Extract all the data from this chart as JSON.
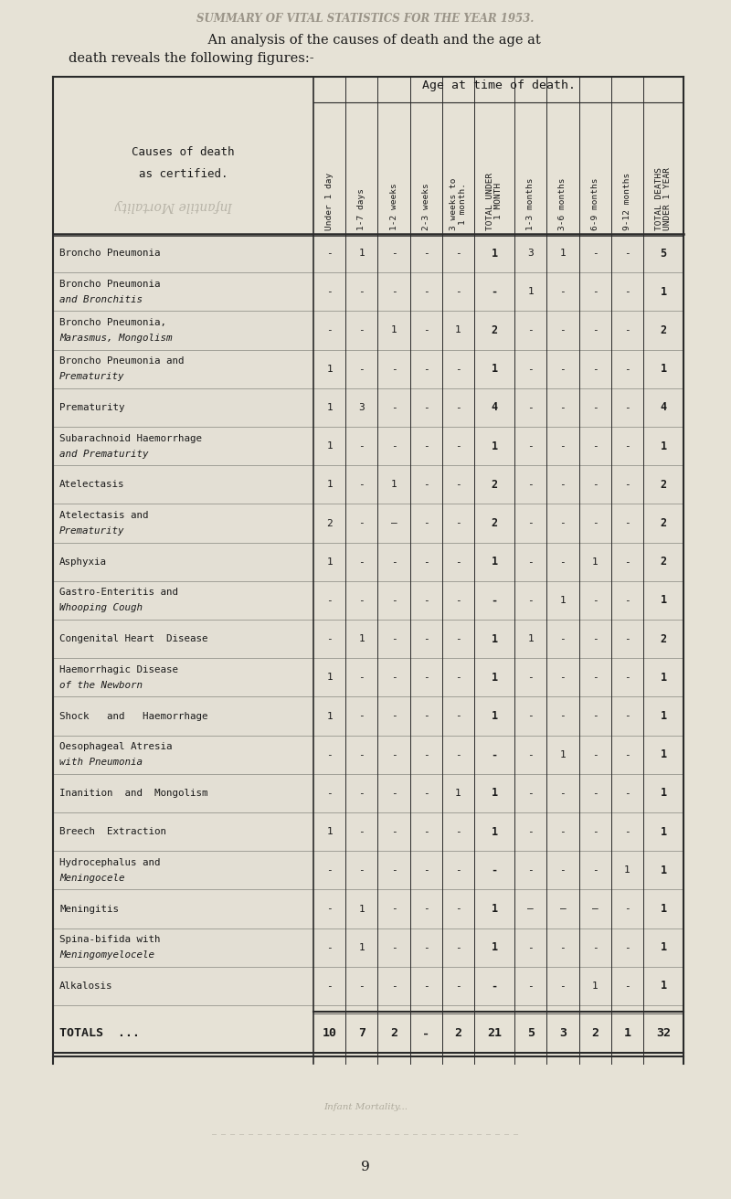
{
  "page_title": "SUMMARY OF VITAL STATISTICS FOR THE YEAR 1953.",
  "intro_line1": "    An analysis of the causes of death and the age at",
  "intro_line2": "death reveals the following figures:-",
  "col_header_top": "Age at time of death.",
  "col_headers": [
    "Under 1 day",
    "1-7 days",
    "1-2 weeks",
    "2-3 weeks",
    "3 weeks to\n1 month.",
    "TOTAL UNDER\n1 MONTH",
    "1-3 months",
    "3-6 months",
    "6-9 months",
    "9-12 months",
    "TOTAL DEATHS\nUNDER 1 YEAR"
  ],
  "row_label_header_line1": "Causes of death",
  "row_label_header_line2": "as certified.",
  "rows": [
    {
      "label": [
        "Broncho Pneumonia"
      ],
      "values": [
        "-",
        "1",
        "-",
        "-",
        "-",
        "1",
        "3",
        "1",
        "-",
        "-",
        "5"
      ]
    },
    {
      "label": [
        "Broncho Pneumonia",
        "and Bronchitis"
      ],
      "values": [
        "-",
        "-",
        "-",
        "-",
        "-",
        "-",
        "1",
        "-",
        "-",
        "-",
        "1"
      ]
    },
    {
      "label": [
        "Broncho Pneumonia,",
        "Marasmus, Mongolism"
      ],
      "values": [
        "-",
        "-",
        "1",
        "-",
        "1",
        "2",
        "-",
        "-",
        "-",
        "-",
        "2"
      ]
    },
    {
      "label": [
        "Broncho Pneumonia and",
        "Prematurity"
      ],
      "values": [
        "1",
        "-",
        "-",
        "-",
        "-",
        "1",
        "-",
        "-",
        "-",
        "-",
        "1"
      ]
    },
    {
      "label": [
        "Prematurity"
      ],
      "values": [
        "1",
        "3",
        "-",
        "-",
        "-",
        "4",
        "-",
        "-",
        "-",
        "-",
        "4"
      ]
    },
    {
      "label": [
        "Subarachnoid Haemorrhage",
        "and Prematurity"
      ],
      "values": [
        "1",
        "-",
        "-",
        "-",
        "-",
        "1",
        "-",
        "-",
        "-",
        "-",
        "1"
      ]
    },
    {
      "label": [
        "Atelectasis"
      ],
      "values": [
        "1",
        "-",
        "1",
        "-",
        "-",
        "2",
        "-",
        "-",
        "-",
        "-",
        "2"
      ]
    },
    {
      "label": [
        "Atelectasis and",
        "Prematurity"
      ],
      "values": [
        "2",
        "-",
        "—",
        "-",
        "-",
        "2",
        "-",
        "-",
        "-",
        "-",
        "2"
      ]
    },
    {
      "label": [
        "Asphyxia"
      ],
      "values": [
        "1",
        "-",
        "-",
        "-",
        "-",
        "1",
        "-",
        "-",
        "1",
        "-",
        "2"
      ]
    },
    {
      "label": [
        "Gastro-Enteritis and",
        "Whooping Cough"
      ],
      "values": [
        "-",
        "-",
        "-",
        "-",
        "-",
        "-",
        "-",
        "1",
        "-",
        "-",
        "1"
      ]
    },
    {
      "label": [
        "Congenital Heart  Disease"
      ],
      "values": [
        "-",
        "1",
        "-",
        "-",
        "-",
        "1",
        "1",
        "-",
        "-",
        "-",
        "2"
      ]
    },
    {
      "label": [
        "Haemorrhagic Disease",
        "of the Newborn"
      ],
      "values": [
        "1",
        "-",
        "-",
        "-",
        "-",
        "1",
        "-",
        "-",
        "-",
        "-",
        "1"
      ]
    },
    {
      "label": [
        "Shock   and   Haemorrhage"
      ],
      "values": [
        "1",
        "-",
        "-",
        "-",
        "-",
        "1",
        "-",
        "-",
        "-",
        "-",
        "1"
      ]
    },
    {
      "label": [
        "Oesophageal Atresia",
        "with Pneumonia"
      ],
      "values": [
        "-",
        "-",
        "-",
        "-",
        "-",
        "-",
        "-",
        "1",
        "-",
        "-",
        "1"
      ]
    },
    {
      "label": [
        "Inanition  and  Mongolism"
      ],
      "values": [
        "-",
        "-",
        "-",
        "-",
        "1",
        "1",
        "-",
        "-",
        "-",
        "-",
        "1"
      ]
    },
    {
      "label": [
        "Breech  Extraction"
      ],
      "values": [
        "1",
        "-",
        "-",
        "-",
        "-",
        "1",
        "-",
        "-",
        "-",
        "-",
        "1"
      ]
    },
    {
      "label": [
        "Hydrocephalus and",
        "Meningocele"
      ],
      "values": [
        "-",
        "-",
        "-",
        "-",
        "-",
        "-",
        "-",
        "-",
        "-",
        "1",
        "1"
      ]
    },
    {
      "label": [
        "Meningitis"
      ],
      "values": [
        "-",
        "1",
        "-",
        "-",
        "-",
        "1",
        "—",
        "—",
        "—",
        "-",
        "1"
      ]
    },
    {
      "label": [
        "Spina-bifida with",
        "Meningomyelocele"
      ],
      "values": [
        "-",
        "1",
        "-",
        "-",
        "-",
        "1",
        "-",
        "-",
        "-",
        "-",
        "1"
      ]
    },
    {
      "label": [
        "Alkalosis"
      ],
      "values": [
        "-",
        "-",
        "-",
        "-",
        "-",
        "-",
        "-",
        "-",
        "1",
        "-",
        "1"
      ]
    }
  ],
  "totals_label": "TOTALS",
  "totals_dots": "...",
  "totals_values": [
    "10",
    "7",
    "2",
    "-",
    "2",
    "21",
    "5",
    "3",
    "2",
    "1",
    "32"
  ],
  "footer_page": "9",
  "bg_color": "#e6e2d6",
  "text_color": "#1a1a1a",
  "watermark_color": "#a8a49a",
  "table_line_color": "#2a2a2a",
  "faint_line_color": "#888880"
}
